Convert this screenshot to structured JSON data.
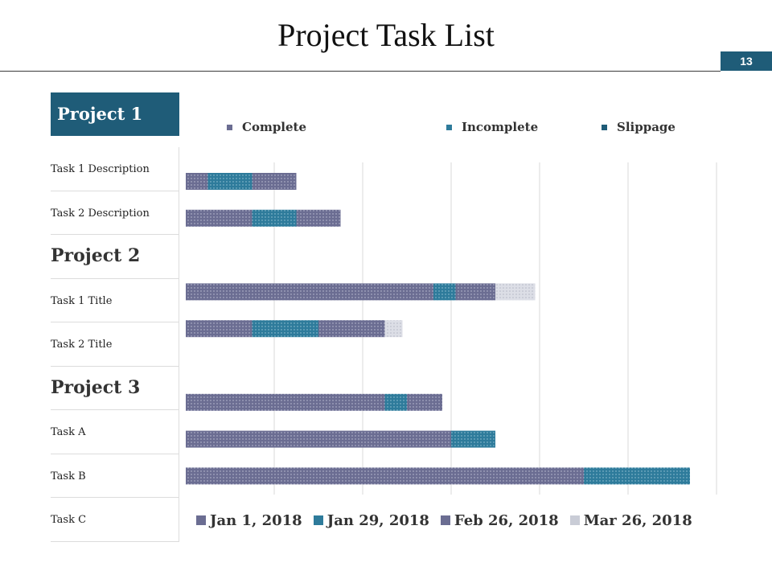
{
  "slide": {
    "title": "Project Task List",
    "page_number": "13"
  },
  "colors": {
    "accent": "#1f5c78",
    "complete": "#6b6d92",
    "incomplete": "#2e7b9b",
    "slippage": "#1f5c78",
    "mar26": "#c9ccd6"
  },
  "left_panel": {
    "project1": "Project 1",
    "rows": [
      {
        "type": "task",
        "label": "Task 1 Description"
      },
      {
        "type": "task",
        "label": "Task 2 Description"
      },
      {
        "type": "project",
        "label": "Project 2"
      },
      {
        "type": "task",
        "label": "Task 1 Title"
      },
      {
        "type": "task",
        "label": "Task 2 Title"
      },
      {
        "type": "project",
        "label": "Project 3"
      },
      {
        "type": "task",
        "label": "Task A"
      },
      {
        "type": "task",
        "label": "Task B"
      },
      {
        "type": "task",
        "label": "Task C"
      }
    ]
  },
  "legend_top": [
    {
      "label": "Complete",
      "color": "#6b6d92"
    },
    {
      "label": "Incomplete",
      "color": "#2e7b9b"
    },
    {
      "label": "Slippage",
      "color": "#1f5c78"
    }
  ],
  "chart_data": {
    "type": "bar",
    "orientation": "horizontal",
    "stacked": true,
    "gridlines": "vertical",
    "xlim": [
      0,
      6
    ],
    "categories": [
      "Task 1 Description",
      "Task 2 Description",
      "",
      "Task 1 Title",
      "Task 2 Title",
      "",
      "Task A",
      "Task B",
      "Task C"
    ],
    "series": [
      {
        "name": "Jan 1, 2018",
        "color": "#6b6d92",
        "values": [
          0.25,
          0.75,
          null,
          2.8,
          0.75,
          null,
          2.25,
          3.0,
          4.5
        ]
      },
      {
        "name": "Jan 29, 2018",
        "color": "#2e7b9b",
        "values": [
          0.5,
          0.5,
          null,
          0.25,
          0.75,
          null,
          0.25,
          0.5,
          1.2
        ]
      },
      {
        "name": "Feb 26, 2018",
        "color": "#6b6d92",
        "values": [
          0.5,
          0.5,
          null,
          0.45,
          0.75,
          null,
          0.4,
          0.0,
          0.0
        ]
      },
      {
        "name": "Mar 26, 2018",
        "color": "#c9ccd6",
        "values": [
          0.0,
          0.0,
          null,
          0.45,
          0.2,
          null,
          0.0,
          0.0,
          0.0
        ]
      }
    ]
  }
}
